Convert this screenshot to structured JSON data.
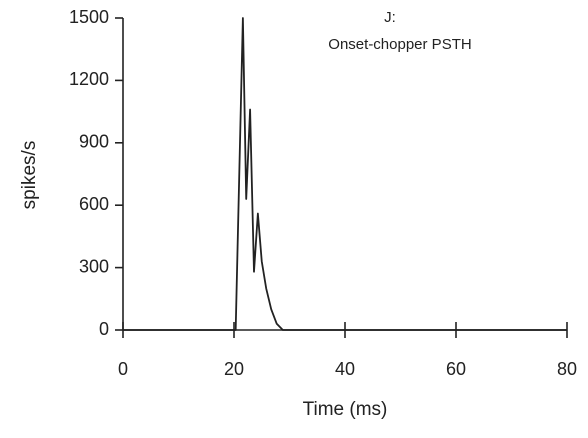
{
  "chart_data": {
    "type": "line",
    "title": "J:",
    "subtitle": "Onset-chopper PSTH",
    "x_label": "Time (ms)",
    "y_label": "spikes/s",
    "x": [
      0,
      20,
      20.3,
      21.6,
      22.2,
      22.9,
      23.6,
      24.3,
      25,
      25.8,
      26.7,
      27.7,
      28.8,
      80
    ],
    "values": [
      0,
      0,
      0,
      1500,
      630,
      1060,
      280,
      560,
      330,
      200,
      100,
      30,
      0,
      0
    ],
    "color": "#222222",
    "xlim": [
      0,
      80
    ],
    "xticks": [
      0,
      20,
      40,
      60,
      80
    ],
    "ylim": [
      0,
      1500
    ],
    "yticks": [
      0,
      300,
      600,
      900,
      1200,
      1500
    ]
  }
}
